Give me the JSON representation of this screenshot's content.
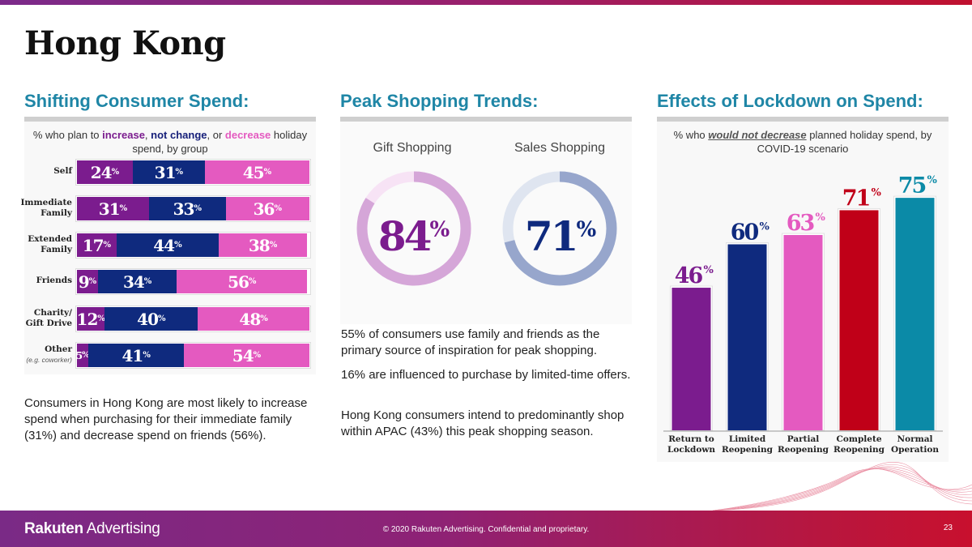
{
  "page": {
    "title": "Hong Kong",
    "page_number": "23",
    "brand": {
      "bold": "Rakuten",
      "rest": " Advertising"
    },
    "copyright": "© 2020 Rakuten Advertising. Confidential and proprietary."
  },
  "colors": {
    "increase": "#7b1c8e",
    "not_change": "#0f2a7e",
    "decrease": "#e45ac0",
    "heading": "#1f86a6"
  },
  "sections": {
    "spend": {
      "heading": "Shifting Consumer Spend:",
      "subtitle_parts": [
        "% who plan to ",
        "increase",
        ", ",
        "not change",
        ", or ",
        "decrease",
        " holiday spend, by group"
      ],
      "paragraph": "Consumers in Hong Kong are most likely to increase spend when purchasing for their immediate family (31%) and decrease spend on friends (56%)."
    },
    "peak": {
      "heading": "Peak Shopping Trends:",
      "paragraphs": [
        "55% of consumers use family and friends as the primary source of inspiration for peak shopping.",
        "16% are influenced to purchase by limited-time offers.",
        "Hong Kong consumers intend to predominantly shop within APAC (43%) this peak shopping season."
      ]
    },
    "lockdown": {
      "heading": "Effects of Lockdown on Spend:",
      "subtitle_parts": [
        "% who ",
        "would not decrease",
        " planned holiday spend, by COVID-19 scenario"
      ]
    }
  },
  "chart_data": [
    {
      "type": "bar",
      "orientation": "horizontal",
      "stacked": true,
      "categories": [
        "Self",
        "Immediate Family",
        "Extended Family",
        "Friends",
        "Charity/ Gift Drive",
        "Other"
      ],
      "category_notes": [
        "",
        "",
        "",
        "",
        "",
        "(e.g. coworker)"
      ],
      "series": [
        {
          "name": "increase",
          "values": [
            24,
            31,
            17,
            9,
            12,
            5
          ]
        },
        {
          "name": "not change",
          "values": [
            31,
            33,
            44,
            34,
            40,
            41
          ]
        },
        {
          "name": "decrease",
          "values": [
            45,
            36,
            38,
            56,
            48,
            54
          ]
        }
      ],
      "unit": "%"
    },
    {
      "type": "pie",
      "variant": "donut",
      "categories": [
        "Gift Shopping",
        "Sales Shopping"
      ],
      "values": [
        84,
        71
      ],
      "unit": "%",
      "colors": [
        "#7b1c8e",
        "#0f2a7e"
      ],
      "ring_colors": [
        "#d5a6d8",
        "#97a6cc"
      ],
      "track_colors": [
        "#f7e3f5",
        "#dfe5f0"
      ]
    },
    {
      "type": "bar",
      "categories": [
        "Return to Lockdown",
        "Limited Reopening",
        "Partial Reopening",
        "Complete Reopening",
        "Normal Operation"
      ],
      "values": [
        46,
        60,
        63,
        71,
        75
      ],
      "unit": "%",
      "colors": [
        "#7b1c8e",
        "#0f2a7e",
        "#e45ac0",
        "#c00018",
        "#0b8aa7"
      ],
      "ylim": [
        0,
        80
      ]
    }
  ]
}
